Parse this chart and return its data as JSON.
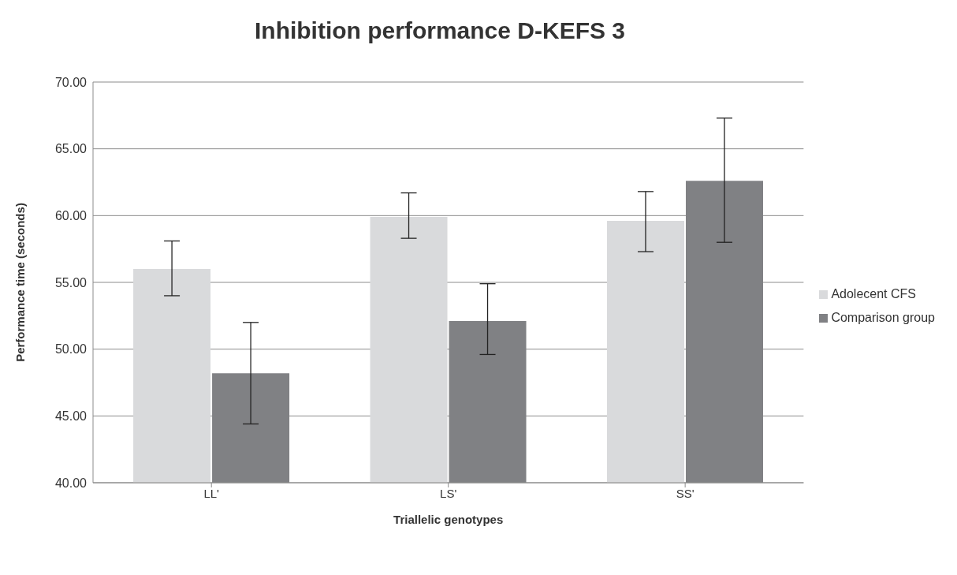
{
  "chart_data": {
    "type": "bar",
    "title": "Inhibition performance D-KEFS 3",
    "xlabel": "Triallelic genotypes",
    "ylabel": "Performance time (seconds)",
    "categories": [
      "LL'",
      "LS'",
      "SS'"
    ],
    "series": [
      {
        "name": "Adolecent CFS",
        "color": "#d9dadc",
        "values": [
          56.0,
          59.9,
          59.6
        ],
        "errors": [
          [
            54.0,
            58.1
          ],
          [
            58.3,
            61.7
          ],
          [
            57.3,
            61.8
          ]
        ]
      },
      {
        "name": "Comparison group",
        "color": "#808184",
        "values": [
          48.2,
          52.1,
          62.6
        ],
        "errors": [
          [
            44.4,
            52.0
          ],
          [
            49.6,
            54.9
          ],
          [
            58.0,
            67.3
          ]
        ]
      }
    ],
    "ylim": [
      40,
      70
    ],
    "yticks": [
      {
        "value": 40,
        "label": "40.00"
      },
      {
        "value": 45,
        "label": "45.00"
      },
      {
        "value": 50,
        "label": "50.00"
      },
      {
        "value": 55,
        "label": "55.00"
      },
      {
        "value": 60,
        "label": "60.00"
      },
      {
        "value": 65,
        "label": "65.00"
      },
      {
        "value": 70,
        "label": "70.00"
      }
    ],
    "grid": "y",
    "legend": "right"
  }
}
